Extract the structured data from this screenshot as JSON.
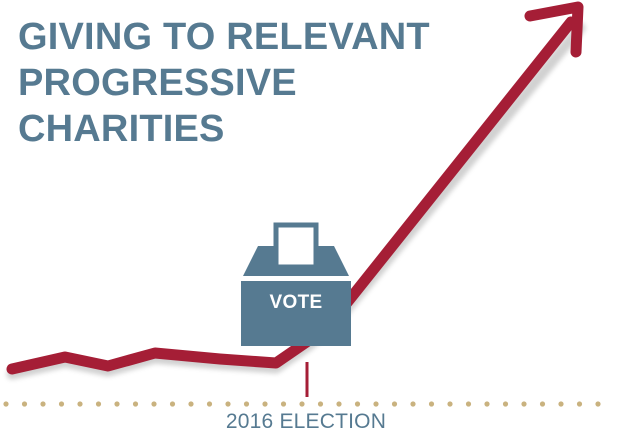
{
  "title": {
    "lines": [
      "GIVING TO RELEVANT",
      "PROGRESSIVE",
      "CHARITIES"
    ]
  },
  "ballot_box": {
    "label": "VOTE"
  },
  "timeline": {
    "event_label": "2016 ELECTION"
  },
  "colors": {
    "title": "#567a91",
    "ballot_box": "#567a91",
    "trend_line": "#a51e36",
    "dots": "#c9b27f",
    "background": "#ffffff"
  }
}
